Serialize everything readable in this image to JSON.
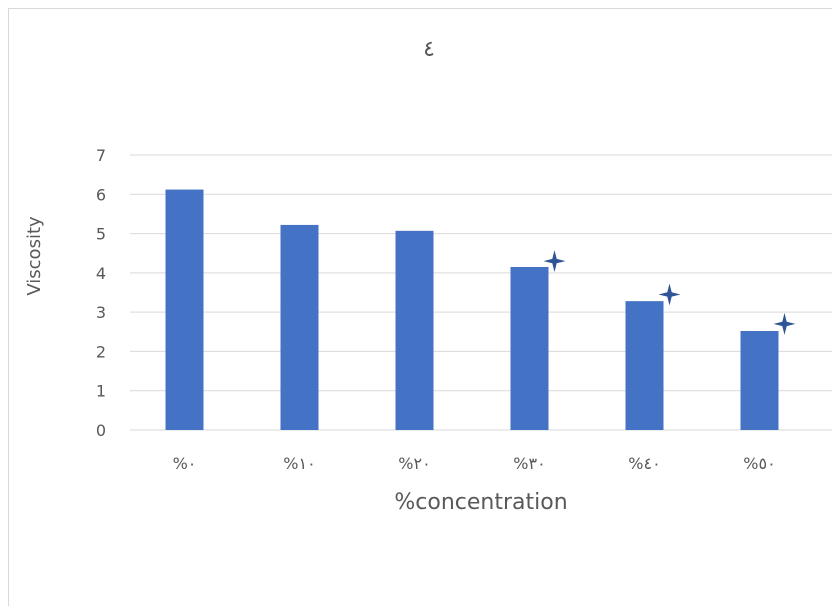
{
  "chart_data": {
    "type": "bar",
    "title": "٤",
    "xlabel": "%concentration",
    "ylabel": "Viscosity",
    "categories": [
      "%٠",
      "%١٠",
      "%٢٠",
      "%٣٠",
      "%٤٠",
      "%٥٠"
    ],
    "values": [
      6.12,
      5.22,
      5.07,
      4.15,
      3.28,
      2.52
    ],
    "markers": [
      null,
      null,
      null,
      4.3,
      3.45,
      2.7
    ],
    "ylim": [
      0,
      7
    ],
    "yticks": [
      "0",
      "1",
      "2",
      "3",
      "4",
      "5",
      "6",
      "7"
    ],
    "grid": true,
    "legend": "none",
    "colors": {
      "bar": "#4472c4",
      "marker": "#2f5597",
      "grid": "#d9d9d9",
      "text": "#595959"
    }
  }
}
